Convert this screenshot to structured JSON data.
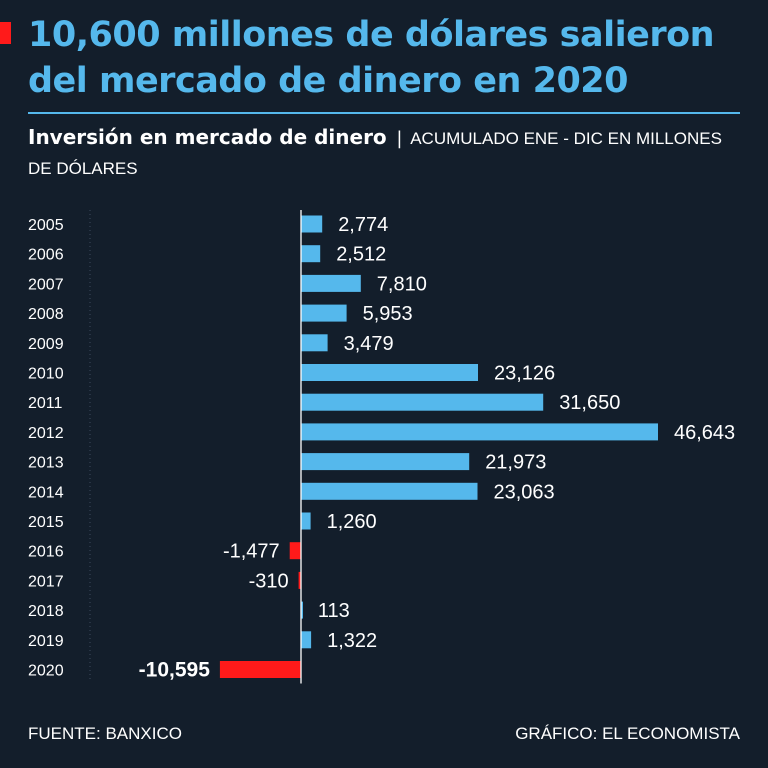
{
  "title": "10,600 millones de dólares salieron del mercado de dinero en 2020",
  "subtitle": {
    "main": "Inversión en mercado de dinero",
    "separator": "|",
    "unit": "ACUMULADO ENE - DIC EN MILLONES DE DÓLARES"
  },
  "footer": {
    "source": "FUENTE: BANXICO",
    "credit": "GRÁFICO: EL ECONOMISTA"
  },
  "colors": {
    "background": "#131e2b",
    "title": "#55b8ec",
    "positive": "#55b8ec",
    "negative": "#ff1a1a",
    "text": "#ffffff",
    "accent": "#ff1a1a"
  },
  "chart_data": {
    "type": "bar",
    "orientation": "horizontal",
    "title": "Inversión en mercado de dinero",
    "xlabel": "",
    "ylabel": "",
    "unit": "millones de dólares",
    "categories": [
      "2005",
      "2006",
      "2007",
      "2008",
      "2009",
      "2010",
      "2011",
      "2012",
      "2013",
      "2014",
      "2015",
      "2016",
      "2017",
      "2018",
      "2019",
      "2020"
    ],
    "values": [
      2774,
      2512,
      7810,
      5953,
      3479,
      23126,
      31650,
      46643,
      21973,
      23063,
      1260,
      -1477,
      -310,
      113,
      1322,
      -10595
    ],
    "labels": [
      "2,774",
      "2,512",
      "7,810",
      "5,953",
      "3,479",
      "23,126",
      "31,650",
      "46,643",
      "21,973",
      "23,063",
      "1,260",
      "-1,477",
      "-310",
      "113",
      "1,322",
      "-10,595"
    ],
    "highlight": "2020",
    "xlim": [
      -17000,
      46643
    ],
    "grid": false,
    "legend": "none"
  }
}
